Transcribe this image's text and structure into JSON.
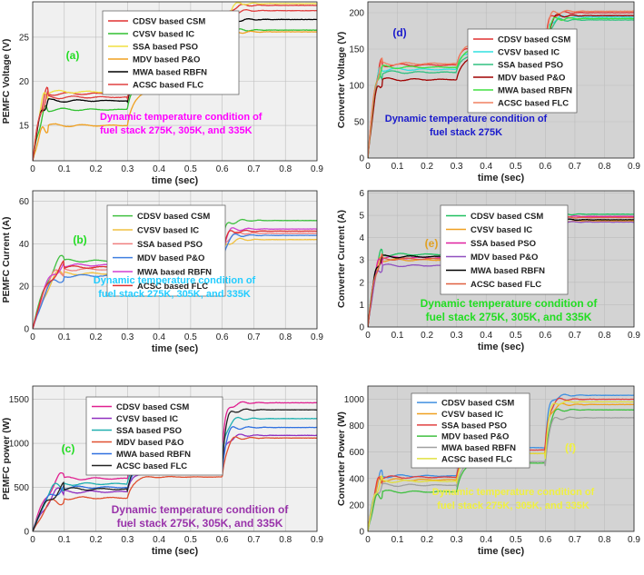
{
  "chart_data": [
    {
      "id": "a",
      "type": "line",
      "panel_label": "(a)",
      "label_color": "#22dd22",
      "ylabel": "PEMFC Voltage (V)",
      "xlabel": "time (sec)",
      "xlim": [
        0,
        0.9
      ],
      "ylim": [
        11,
        29
      ],
      "xticks": [
        "0",
        "0.1",
        "0.2",
        "0.3",
        "0.4",
        "0.5",
        "0.6",
        "0.7",
        "0.8",
        "0.9"
      ],
      "yticks": [
        "15",
        "20",
        "25"
      ],
      "ytick_values": [
        15,
        20,
        25
      ],
      "annotation": [
        "Dynamic temperature condition of",
        "fuel stack 275K, 305K, and 335K"
      ],
      "annotation_color": "#ff00ff",
      "legend_position": "top-right",
      "series": [
        {
          "name": "CDSV based CSM",
          "color": "#e03030",
          "levels": [
            18.6,
            28.6
          ],
          "tstart": 0.05
        },
        {
          "name": "CVSV based IC",
          "color": "#30c030",
          "levels": [
            16.8,
            25.8
          ],
          "tstart": 0.05
        },
        {
          "name": "SSA based PSO",
          "color": "#f0e040",
          "levels": [
            18.8,
            28.8
          ],
          "tstart": 0.05
        },
        {
          "name": "MDV based P&O",
          "color": "#f0a020",
          "levels": [
            15.0,
            25.6
          ],
          "tstart": 0.05
        },
        {
          "name": "MWA based RBFN",
          "color": "#000000",
          "levels": [
            17.8,
            27.0
          ],
          "tstart": 0.05
        },
        {
          "name": "ACSC based FLC",
          "color": "#e04040",
          "levels": [
            18.2,
            28.0
          ],
          "tstart": 0.05
        }
      ]
    },
    {
      "id": "b",
      "type": "line",
      "panel_label": "(b)",
      "label_color": "#22dd22",
      "ylabel": "PEMFC Current (A)",
      "xlabel": "time (sec)",
      "xlim": [
        0,
        0.9
      ],
      "ylim": [
        0,
        65
      ],
      "xticks": [
        "0",
        "0.1",
        "0.2",
        "0.3",
        "0.4",
        "0.5",
        "0.6",
        "0.7",
        "0.8",
        "0.9"
      ],
      "yticks": [
        "0",
        "20",
        "40",
        "60"
      ],
      "ytick_values": [
        0,
        20,
        40,
        60
      ],
      "annotation": [
        "Dynamic temperature condition of",
        "fuel stack 275K, 305K, and 335K"
      ],
      "annotation_color": "#22ccff",
      "legend_position": "top-right",
      "series": [
        {
          "name": "CDSV based CSM",
          "color": "#40c040",
          "levels": [
            32,
            51
          ],
          "tstart": 0.1
        },
        {
          "name": "CVSV based IC",
          "color": "#f0c040",
          "levels": [
            26,
            42
          ],
          "tstart": 0.1
        },
        {
          "name": "SSA based PSO",
          "color": "#f08080",
          "levels": [
            28,
            45
          ],
          "tstart": 0.1
        },
        {
          "name": "MDV based P&O",
          "color": "#4080e0",
          "levels": [
            25,
            44
          ],
          "tstart": 0.1
        },
        {
          "name": "MWA based RBFN",
          "color": "#d040d0",
          "levels": [
            30,
            47
          ],
          "tstart": 0.1
        },
        {
          "name": "ACSC based FLC",
          "color": "#e03030",
          "levels": [
            29,
            46
          ],
          "tstart": 0.1
        }
      ]
    },
    {
      "id": "c",
      "type": "line",
      "panel_label": "(c)",
      "label_color": "#22dd22",
      "ylabel": "PEMFC power (W)",
      "xlabel": "time (sec)",
      "xlim": [
        0,
        0.9
      ],
      "ylim": [
        0,
        1650
      ],
      "xticks": [
        "0",
        "0.1",
        "0.2",
        "0.3",
        "0.4",
        "0.5",
        "0.6",
        "0.7",
        "0.8",
        "0.9"
      ],
      "yticks": [
        "0",
        "500",
        "1000",
        "1500"
      ],
      "ytick_values": [
        0,
        500,
        1000,
        1500
      ],
      "annotation": [
        "Dynamic temperature condition of",
        "fuel stack 275K, 305K, and 335K"
      ],
      "annotation_color": "#9933aa",
      "legend_position": "top-right",
      "series": [
        {
          "name": "CDSV based CSM",
          "color": "#e02090",
          "levels": [
            600,
            1460
          ],
          "tstart": 0.1
        },
        {
          "name": "CVSV based IC",
          "color": "#9030c0",
          "levels": [
            450,
            1090
          ],
          "tstart": 0.1
        },
        {
          "name": "SSA based PSO",
          "color": "#20b0b0",
          "levels": [
            540,
            1280
          ],
          "tstart": 0.1
        },
        {
          "name": "MDV based P&O",
          "color": "#e05030",
          "levels": [
            380,
            1060
          ],
          "tstart": 0.1
        },
        {
          "name": "MWA based RBFN",
          "color": "#3070e0",
          "levels": [
            500,
            1180
          ],
          "tstart": 0.1
        },
        {
          "name": "ACSC based FLC",
          "color": "#222222",
          "levels": [
            480,
            1380
          ],
          "tstart": 0.1
        }
      ]
    },
    {
      "id": "d",
      "type": "line",
      "panel_label": "(d)",
      "label_color": "#1a1acc",
      "ylabel": "Converter Voltage (V)",
      "xlabel": "time (sec)",
      "xlim": [
        0,
        0.9
      ],
      "ylim": [
        0,
        215
      ],
      "xticks": [
        "0",
        "0.1",
        "0.2",
        "0.3",
        "0.4",
        "0.5",
        "0.6",
        "0.7",
        "0.8",
        "0.9"
      ],
      "yticks": [
        "0",
        "50",
        "100",
        "150",
        "200"
      ],
      "ytick_values": [
        0,
        50,
        100,
        150,
        200
      ],
      "annotation": [
        "Dynamic temperature condition of",
        "fuel stack 275K"
      ],
      "annotation_color": "#1a1acc",
      "legend_position": "top-right",
      "series": [
        {
          "name": "CDSV based CSM",
          "color": "#e03030",
          "levels": [
            128,
            200
          ],
          "tstart": 0.05
        },
        {
          "name": "CVSV based IC",
          "color": "#30e0e0",
          "levels": [
            122,
            194
          ],
          "tstart": 0.05
        },
        {
          "name": "SSA based PSO",
          "color": "#30c080",
          "levels": [
            118,
            190
          ],
          "tstart": 0.05
        },
        {
          "name": "MDV based P&O",
          "color": "#a00000",
          "levels": [
            108,
            196
          ],
          "tstart": 0.05
        },
        {
          "name": "MWA based RBFN",
          "color": "#40e040",
          "levels": [
            125,
            192
          ],
          "tstart": 0.05
        },
        {
          "name": "ACSC based FLC",
          "color": "#f08060",
          "levels": [
            130,
            202
          ],
          "tstart": 0.05
        }
      ]
    },
    {
      "id": "e",
      "type": "line",
      "panel_label": "(e)",
      "label_color": "#e0a020",
      "ylabel": "Converter Current (A)",
      "xlabel": "time (sec)",
      "xlim": [
        0,
        0.9
      ],
      "ylim": [
        0,
        6.1
      ],
      "xticks": [
        "0",
        "0.1",
        "0.2",
        "0.3",
        "0.4",
        "0.5",
        "0.6",
        "0.7",
        "0.8",
        "0.9"
      ],
      "yticks": [
        "0",
        "1",
        "2",
        "3",
        "4",
        "5",
        "6"
      ],
      "ytick_values": [
        0,
        1,
        2,
        3,
        4,
        5,
        6
      ],
      "annotation": [
        "Dynamic temperature condition of",
        "fuel stack 275K, 305K, and 335K"
      ],
      "annotation_color": "#22dd22",
      "legend_position": "top-right",
      "series": [
        {
          "name": "CDSV based CSM",
          "color": "#20c060",
          "levels": [
            3.25,
            5.05
          ],
          "tstart": 0.05
        },
        {
          "name": "CVSV based IC",
          "color": "#f0a020",
          "levels": [
            3.0,
            4.75
          ],
          "tstart": 0.05
        },
        {
          "name": "SSA based PSO",
          "color": "#e020a0",
          "levels": [
            3.1,
            4.95
          ],
          "tstart": 0.05
        },
        {
          "name": "MDV based P&O",
          "color": "#9050c0",
          "levels": [
            2.75,
            4.7
          ],
          "tstart": 0.05
        },
        {
          "name": "MWA based RBFN",
          "color": "#000000",
          "levels": [
            3.15,
            4.8
          ],
          "tstart": 0.05
        },
        {
          "name": "ACSC based FLC",
          "color": "#e06040",
          "levels": [
            3.05,
            4.9
          ],
          "tstart": 0.05
        }
      ]
    },
    {
      "id": "f",
      "type": "line",
      "panel_label": "(f)",
      "label_color": "#f0f040",
      "ylabel": "Converter Power (W)",
      "xlabel": "time (sec)",
      "xlim": [
        0,
        0.9
      ],
      "ylim": [
        0,
        1100
      ],
      "xticks": [
        "0",
        "0.1",
        "0.2",
        "0.3",
        "0.4",
        "0.5",
        "0.6",
        "0.7",
        "0.8",
        "0.9"
      ],
      "yticks": [
        "0",
        "200",
        "400",
        "600",
        "800",
        "1000"
      ],
      "ytick_values": [
        0,
        200,
        400,
        600,
        800,
        1000
      ],
      "annotation": [
        "Dynamic temperature condition of",
        "fuel stack 275K, 305K, and 335K"
      ],
      "annotation_color": "#f0f040",
      "legend_position": "top-right",
      "series": [
        {
          "name": "CDSV based CSM",
          "color": "#4090e0",
          "levels": [
            420,
            1030
          ],
          "tstart": 0.05
        },
        {
          "name": "CVSV based IC",
          "color": "#f0a020",
          "levels": [
            390,
            960
          ],
          "tstart": 0.05
        },
        {
          "name": "SSA based PSO",
          "color": "#e04040",
          "levels": [
            410,
            1000
          ],
          "tstart": 0.05
        },
        {
          "name": "MDV based P&O",
          "color": "#40c040",
          "levels": [
            300,
            920
          ],
          "tstart": 0.05
        },
        {
          "name": "MWA based RBFN",
          "color": "#a0a0a0",
          "levels": [
            350,
            860
          ],
          "tstart": 0.05
        },
        {
          "name": "ACSC based FLC",
          "color": "#e0e040",
          "levels": [
            380,
            980
          ],
          "tstart": 0.05
        }
      ]
    }
  ]
}
